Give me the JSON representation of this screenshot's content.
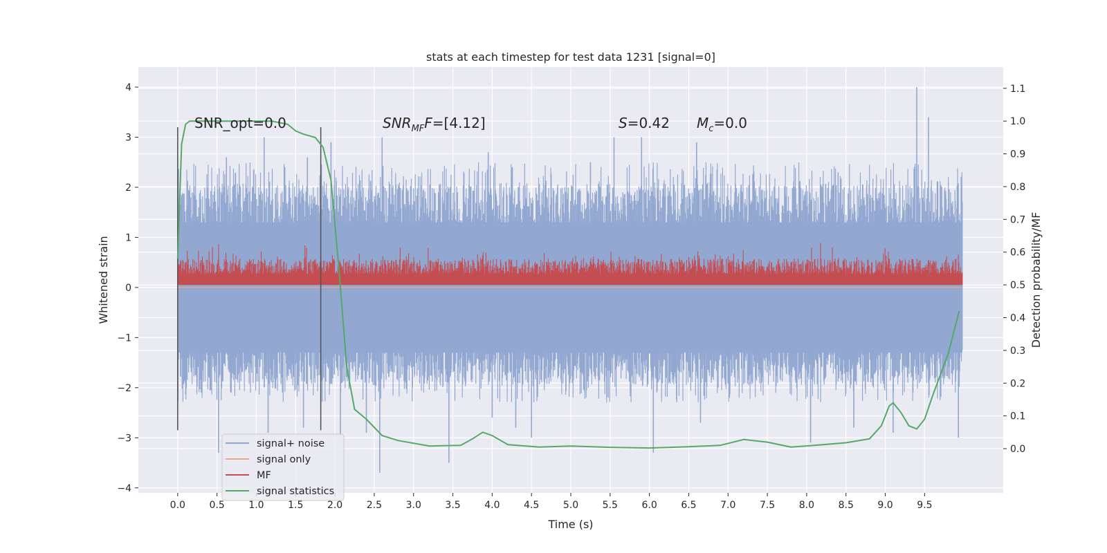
{
  "chart_data": {
    "type": "line",
    "title": "stats at each timestep for test data 1231 [signal=0]",
    "xlabel": "Time (s)",
    "ylabel": "Whitened strain",
    "y2label": "Detection probability/MF",
    "xlim": [
      -0.5,
      10.5
    ],
    "ylim": [
      -4.1,
      4.4
    ],
    "y2lim": [
      -0.135,
      1.165
    ],
    "xticks": [
      "0.0",
      "0.5",
      "1.0",
      "1.5",
      "2.0",
      "2.5",
      "3.0",
      "3.5",
      "4.0",
      "4.5",
      "5.0",
      "5.5",
      "6.0",
      "6.5",
      "7.0",
      "7.5",
      "8.0",
      "8.5",
      "9.0",
      "9.5"
    ],
    "yticks": [
      "4",
      "3",
      "2",
      "1",
      "0",
      "−1",
      "−2",
      "−3",
      "−4"
    ],
    "y2ticks": [
      "1.1",
      "1.0",
      "0.9",
      "0.8",
      "0.7",
      "0.6",
      "0.5",
      "0.4",
      "0.3",
      "0.2",
      "0.1",
      "0.0"
    ],
    "grid": true,
    "legend_position": "lower-left",
    "annotations": {
      "snr_opt": "SNR_opt=0.0",
      "snr_mf_base": "SNR",
      "snr_mf_sub": "MF",
      "snr_mf_value": "=[4.12]",
      "s_label": "S",
      "s_value": "=0.42",
      "mc_base": "M",
      "mc_sub": "c",
      "mc_value": "=0.0"
    },
    "vertical_markers": [
      0.0,
      1.82
    ],
    "vertical_marker_range": [
      -2.85,
      3.2
    ],
    "series": [
      {
        "name": "signal+ noise",
        "color": "#92a8d1",
        "axis": "left",
        "style": "dense-noise",
        "x_range": [
          0.0,
          9.98
        ],
        "envelope_y": [
          -2.2,
          2.4
        ],
        "spikes_y": [
          [
            0.05,
            1.85
          ],
          [
            0.3,
            -2.1
          ],
          [
            0.52,
            -3.3
          ],
          [
            0.62,
            2.6
          ],
          [
            1.1,
            3.0
          ],
          [
            1.15,
            -2.9
          ],
          [
            1.6,
            -2.8
          ],
          [
            1.65,
            2.6
          ],
          [
            1.95,
            2.9
          ],
          [
            2.07,
            -2.95
          ],
          [
            2.4,
            -2.9
          ],
          [
            2.6,
            3.0
          ],
          [
            2.57,
            -3.7
          ],
          [
            3.45,
            -3.5
          ],
          [
            3.95,
            2.7
          ],
          [
            4.0,
            -2.6
          ],
          [
            4.3,
            -2.8
          ],
          [
            4.5,
            -3.0
          ],
          [
            5.25,
            2.5
          ],
          [
            5.55,
            3.0
          ],
          [
            5.9,
            3.0
          ],
          [
            6.05,
            -3.3
          ],
          [
            6.6,
            2.9
          ],
          [
            6.65,
            -2.7
          ],
          [
            8.05,
            -3.1
          ],
          [
            8.4,
            2.3
          ],
          [
            8.6,
            -2.8
          ],
          [
            9.1,
            -2.9
          ],
          [
            9.4,
            4.0
          ],
          [
            9.55,
            3.4
          ],
          [
            9.93,
            -3.0
          ]
        ]
      },
      {
        "name": "signal only",
        "color": "#e8a489",
        "axis": "left",
        "x_range": [
          0.0,
          9.98
        ],
        "value": 0.0
      },
      {
        "name": "MF",
        "color": "#c44e52",
        "axis": "right",
        "style": "dense-noise",
        "x_range": [
          0.0,
          9.98
        ],
        "envelope_y2": [
          0.5,
          0.58
        ],
        "peak_y2": 0.63
      },
      {
        "name": "signal statistics",
        "color": "#55a868",
        "axis": "right",
        "x": [
          0.0,
          0.05,
          0.1,
          0.15,
          0.2,
          0.4,
          0.8,
          1.2,
          1.4,
          1.5,
          1.6,
          1.75,
          1.85,
          1.95,
          2.05,
          2.15,
          2.25,
          2.4,
          2.6,
          2.8,
          3.2,
          3.6,
          3.75,
          3.88,
          4.0,
          4.2,
          4.6,
          5.0,
          5.5,
          6.0,
          6.5,
          6.9,
          7.2,
          7.5,
          7.8,
          8.1,
          8.5,
          8.8,
          8.95,
          9.05,
          9.1,
          9.2,
          9.3,
          9.4,
          9.5,
          9.6,
          9.8,
          9.94
        ],
        "y": [
          0.58,
          0.93,
          0.99,
          1.0,
          1.0,
          1.0,
          1.0,
          1.0,
          0.99,
          0.97,
          0.96,
          0.95,
          0.92,
          0.82,
          0.55,
          0.25,
          0.12,
          0.09,
          0.04,
          0.025,
          0.008,
          0.01,
          0.03,
          0.05,
          0.04,
          0.012,
          0.005,
          0.008,
          0.004,
          0.002,
          0.006,
          0.01,
          0.028,
          0.02,
          0.005,
          0.01,
          0.018,
          0.03,
          0.07,
          0.13,
          0.14,
          0.11,
          0.07,
          0.06,
          0.09,
          0.16,
          0.29,
          0.42
        ]
      }
    ]
  }
}
